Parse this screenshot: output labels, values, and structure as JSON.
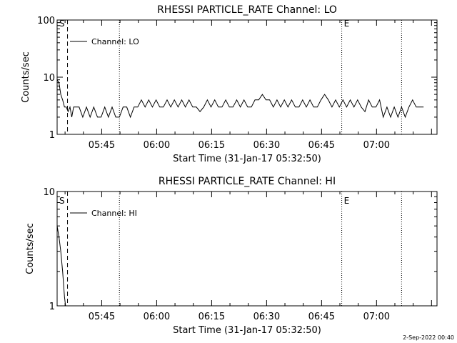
{
  "footer": {
    "timestamp": "2-Sep-2022 00:40"
  },
  "chart_data": [
    {
      "type": "line",
      "title": "RHESSI PARTICLE_RATE Channel: LO",
      "xlabel": "Start Time (31-Jan-17 05:32:50)",
      "ylabel": "Counts/sec",
      "yscale": "log",
      "ylim": [
        1,
        100
      ],
      "xlim": [
        "05:32:50",
        "07:16:30"
      ],
      "x_ticks": [
        "05:45",
        "06:00",
        "06:15",
        "06:30",
        "06:45",
        "07:00"
      ],
      "y_ticks": [
        "1",
        "10",
        "100"
      ],
      "legend": "Channel: LO",
      "markers": [
        {
          "label": "S",
          "time": "05:32:50",
          "style": "solid"
        },
        {
          "label": "",
          "time": "05:35:40",
          "style": "dashed"
        },
        {
          "label": "",
          "time": "05:49:50",
          "style": "dotted"
        },
        {
          "label": "E",
          "time": "06:50:30",
          "style": "dotted"
        },
        {
          "label": "",
          "time": "07:06:50",
          "style": "dotted"
        }
      ],
      "series": [
        {
          "name": "Channel: LO",
          "x_minutes": [
            0,
            0.5,
            1,
            1.5,
            2,
            2.5,
            3,
            3.5,
            4,
            4.5,
            5,
            6,
            7,
            8,
            9,
            10,
            11,
            12,
            13,
            14,
            15,
            16,
            17,
            18,
            19,
            20,
            21,
            22,
            23,
            24,
            25,
            26,
            27,
            28,
            29,
            30,
            31,
            32,
            33,
            34,
            35,
            36,
            37,
            38,
            39,
            40,
            41,
            42,
            43,
            44,
            45,
            46,
            47,
            48,
            49,
            50,
            51,
            52,
            53,
            54,
            55,
            56,
            57,
            58,
            59,
            60,
            61,
            62,
            63,
            64,
            65,
            66,
            67,
            68,
            69,
            70,
            71,
            72,
            73,
            74,
            75,
            76,
            77,
            78,
            79,
            80,
            81,
            82,
            83,
            84,
            85,
            86,
            87,
            88,
            89,
            90,
            91,
            92,
            93,
            94,
            95,
            96,
            97,
            98,
            99,
            100
          ],
          "values": [
            9,
            8,
            5,
            4,
            3,
            3,
            2.5,
            3,
            2,
            3,
            3,
            3,
            2,
            3,
            2,
            3,
            2,
            2,
            3,
            2,
            3,
            2,
            2,
            3,
            3,
            2,
            3,
            3,
            4,
            3,
            4,
            3,
            4,
            3,
            3,
            4,
            3,
            4,
            3,
            4,
            3,
            4,
            3,
            3,
            2.5,
            3,
            4,
            3,
            4,
            3,
            3,
            4,
            3,
            3,
            4,
            3,
            4,
            3,
            3,
            4,
            4,
            5,
            4,
            4,
            3,
            4,
            3,
            4,
            3,
            4,
            3,
            3,
            4,
            3,
            4,
            3,
            3,
            4,
            5,
            4,
            3,
            4,
            3,
            4,
            3,
            4,
            3,
            4,
            3,
            2.5,
            4,
            3,
            3,
            4,
            2,
            3,
            2,
            3,
            2,
            3,
            2,
            3,
            4,
            3,
            3,
            3
          ]
        }
      ]
    },
    {
      "type": "line",
      "title": "RHESSI PARTICLE_RATE Channel: HI",
      "xlabel": "Start Time (31-Jan-17 05:32:50)",
      "ylabel": "Counts/sec",
      "yscale": "log",
      "ylim": [
        1,
        10
      ],
      "xlim": [
        "05:32:50",
        "07:16:30"
      ],
      "x_ticks": [
        "05:45",
        "06:00",
        "06:15",
        "06:30",
        "06:45",
        "07:00"
      ],
      "y_ticks": [
        "1",
        "10"
      ],
      "legend": "Channel: HI",
      "markers": [
        {
          "label": "S",
          "time": "05:32:50",
          "style": "solid"
        },
        {
          "label": "",
          "time": "05:35:40",
          "style": "dashed"
        },
        {
          "label": "",
          "time": "05:49:50",
          "style": "dotted"
        },
        {
          "label": "E",
          "time": "06:50:30",
          "style": "dotted"
        },
        {
          "label": "",
          "time": "07:06:50",
          "style": "dotted"
        }
      ],
      "series": [
        {
          "name": "Channel: HI",
          "x_minutes": [
            0,
            0.5,
            1,
            1.5,
            2,
            2.3
          ],
          "values": [
            5,
            4,
            3,
            2,
            1.2,
            1
          ]
        }
      ]
    }
  ]
}
